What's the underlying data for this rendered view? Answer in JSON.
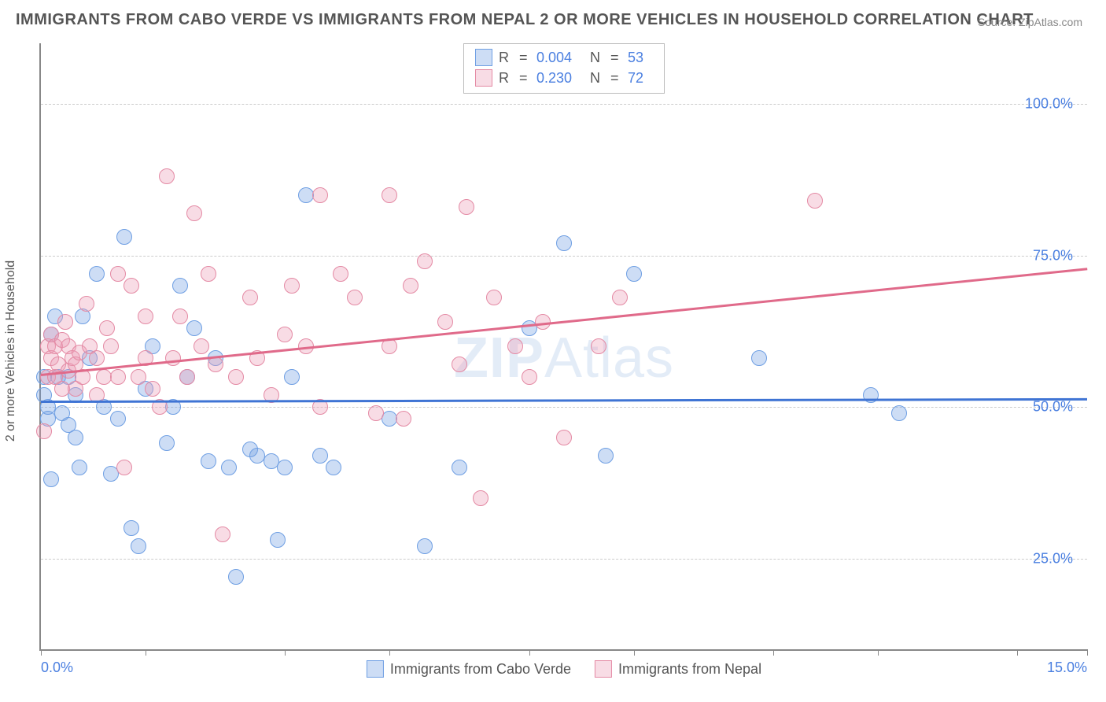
{
  "title": "IMMIGRANTS FROM CABO VERDE VS IMMIGRANTS FROM NEPAL 2 OR MORE VEHICLES IN HOUSEHOLD CORRELATION CHART",
  "source_label": "Source: ",
  "source_name": "ZipAtlas.com",
  "watermark_a": "ZIP",
  "watermark_b": "Atlas",
  "chart": {
    "type": "scatter",
    "ylabel": "2 or more Vehicles in Household",
    "xlim": [
      0,
      15
    ],
    "ylim": [
      10,
      110
    ],
    "x_tick_positions": [
      0,
      1.5,
      3.5,
      5.0,
      7.0,
      8.5,
      10.5,
      12.0,
      14.0,
      15.0
    ],
    "x_visible_labels": {
      "0": "0.0%",
      "15": "15.0%"
    },
    "y_gridlines": [
      25,
      50,
      75,
      100
    ],
    "y_tick_labels": {
      "25": "25.0%",
      "50": "50.0%",
      "75": "75.0%",
      "100": "100.0%"
    },
    "background_color": "#ffffff",
    "grid_color": "#cccccc",
    "axis_color": "#888888",
    "tick_label_color": "#4a7fe0",
    "label_fontsize": 16,
    "tick_fontsize": 18,
    "title_fontsize": 20,
    "marker_radius": 10,
    "marker_border_width": 1.5,
    "marker_fill_opacity": 0.35,
    "series": [
      {
        "id": "cabo_verde",
        "label": "Immigrants from Cabo Verde",
        "R": "0.004",
        "N": "53",
        "color_border": "#6f9fe3",
        "color_fill": "rgba(111,159,227,0.35)",
        "trend": {
          "y_at_x0": 51.0,
          "y_at_x15": 51.4,
          "color": "#3f74d4",
          "width": 2.5
        },
        "points": [
          [
            0.05,
            55
          ],
          [
            0.05,
            52
          ],
          [
            0.1,
            50
          ],
          [
            0.1,
            48
          ],
          [
            0.15,
            38
          ],
          [
            0.15,
            62
          ],
          [
            0.2,
            65
          ],
          [
            0.25,
            55
          ],
          [
            0.3,
            49
          ],
          [
            0.4,
            55
          ],
          [
            0.4,
            47
          ],
          [
            0.5,
            52
          ],
          [
            0.5,
            45
          ],
          [
            0.55,
            40
          ],
          [
            0.6,
            65
          ],
          [
            0.7,
            58
          ],
          [
            0.8,
            72
          ],
          [
            0.9,
            50
          ],
          [
            1.0,
            39
          ],
          [
            1.1,
            48
          ],
          [
            1.2,
            78
          ],
          [
            1.3,
            30
          ],
          [
            1.4,
            27
          ],
          [
            1.5,
            53
          ],
          [
            1.6,
            60
          ],
          [
            1.8,
            44
          ],
          [
            1.9,
            50
          ],
          [
            2.0,
            70
          ],
          [
            2.1,
            55
          ],
          [
            2.2,
            63
          ],
          [
            2.4,
            41
          ],
          [
            2.5,
            58
          ],
          [
            2.7,
            40
          ],
          [
            2.8,
            22
          ],
          [
            3.0,
            43
          ],
          [
            3.1,
            42
          ],
          [
            3.3,
            41
          ],
          [
            3.4,
            28
          ],
          [
            3.5,
            40
          ],
          [
            3.6,
            55
          ],
          [
            3.8,
            85
          ],
          [
            4.0,
            42
          ],
          [
            4.2,
            40
          ],
          [
            5.0,
            48
          ],
          [
            5.5,
            27
          ],
          [
            6.0,
            40
          ],
          [
            7.0,
            63
          ],
          [
            7.5,
            77
          ],
          [
            8.1,
            42
          ],
          [
            8.5,
            72
          ],
          [
            10.3,
            58
          ],
          [
            11.9,
            52
          ],
          [
            12.3,
            49
          ]
        ]
      },
      {
        "id": "nepal",
        "label": "Immigrants from Nepal",
        "R": "0.230",
        "N": "72",
        "color_border": "#e48aa4",
        "color_fill": "rgba(235,155,180,0.35)",
        "trend": {
          "y_at_x0": 55.5,
          "y_at_x15": 73.0,
          "color": "#e06a8a",
          "width": 2.5
        },
        "points": [
          [
            0.05,
            46
          ],
          [
            0.1,
            55
          ],
          [
            0.1,
            60
          ],
          [
            0.15,
            62
          ],
          [
            0.15,
            58
          ],
          [
            0.2,
            60
          ],
          [
            0.2,
            55
          ],
          [
            0.25,
            57
          ],
          [
            0.3,
            53
          ],
          [
            0.3,
            61
          ],
          [
            0.35,
            64
          ],
          [
            0.4,
            60
          ],
          [
            0.4,
            56
          ],
          [
            0.45,
            58
          ],
          [
            0.5,
            57
          ],
          [
            0.5,
            53
          ],
          [
            0.55,
            59
          ],
          [
            0.6,
            55
          ],
          [
            0.65,
            67
          ],
          [
            0.7,
            60
          ],
          [
            0.8,
            52
          ],
          [
            0.8,
            58
          ],
          [
            0.9,
            55
          ],
          [
            0.95,
            63
          ],
          [
            1.0,
            60
          ],
          [
            1.1,
            72
          ],
          [
            1.1,
            55
          ],
          [
            1.2,
            40
          ],
          [
            1.3,
            70
          ],
          [
            1.4,
            55
          ],
          [
            1.5,
            58
          ],
          [
            1.5,
            65
          ],
          [
            1.6,
            53
          ],
          [
            1.7,
            50
          ],
          [
            1.8,
            88
          ],
          [
            1.9,
            58
          ],
          [
            2.0,
            65
          ],
          [
            2.1,
            55
          ],
          [
            2.2,
            82
          ],
          [
            2.3,
            60
          ],
          [
            2.4,
            72
          ],
          [
            2.5,
            57
          ],
          [
            2.6,
            29
          ],
          [
            2.8,
            55
          ],
          [
            3.0,
            68
          ],
          [
            3.1,
            58
          ],
          [
            3.3,
            52
          ],
          [
            3.5,
            62
          ],
          [
            3.6,
            70
          ],
          [
            3.8,
            60
          ],
          [
            4.0,
            85
          ],
          [
            4.0,
            50
          ],
          [
            4.3,
            72
          ],
          [
            4.5,
            68
          ],
          [
            4.8,
            49
          ],
          [
            5.0,
            60
          ],
          [
            5.0,
            85
          ],
          [
            5.2,
            48
          ],
          [
            5.3,
            70
          ],
          [
            5.5,
            74
          ],
          [
            5.8,
            64
          ],
          [
            6.0,
            57
          ],
          [
            6.1,
            83
          ],
          [
            6.3,
            35
          ],
          [
            6.5,
            68
          ],
          [
            6.8,
            60
          ],
          [
            7.0,
            55
          ],
          [
            7.2,
            64
          ],
          [
            7.5,
            45
          ],
          [
            8.0,
            60
          ],
          [
            8.3,
            68
          ],
          [
            11.1,
            84
          ]
        ]
      }
    ]
  }
}
